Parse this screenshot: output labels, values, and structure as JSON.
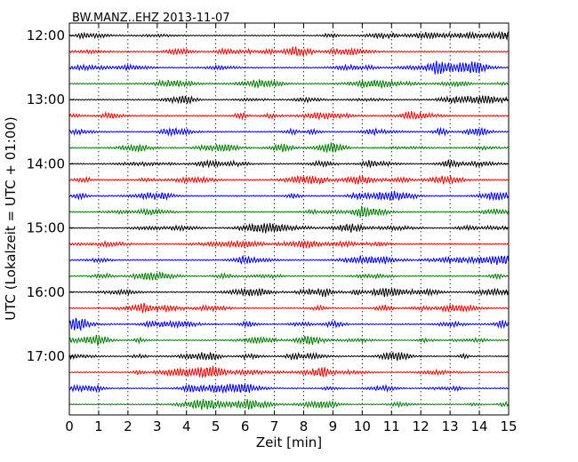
{
  "chart_data": {
    "type": "line",
    "title": "BW.MANZ..EHZ 2013-11-07",
    "xlabel": "Zeit  [min]",
    "ylabel": "UTC (Lokalzeit = UTC + 01:00)",
    "xlim": [
      0,
      15
    ],
    "x_ticks": [
      "0",
      "1",
      "2",
      "3",
      "4",
      "5",
      "6",
      "7",
      "8",
      "9",
      "10",
      "11",
      "12",
      "13",
      "14",
      "15"
    ],
    "y_ticks": [
      "12:00",
      "13:00",
      "14:00",
      "15:00",
      "16:00",
      "17:00"
    ],
    "grid": "vertical dotted lines at each minute",
    "trace_interval_minutes": 15,
    "trace_start": "12:00",
    "trace_count": 24,
    "trace_colors": [
      "#000000",
      "#ff0000",
      "#0000ff",
      "#008000"
    ]
  }
}
